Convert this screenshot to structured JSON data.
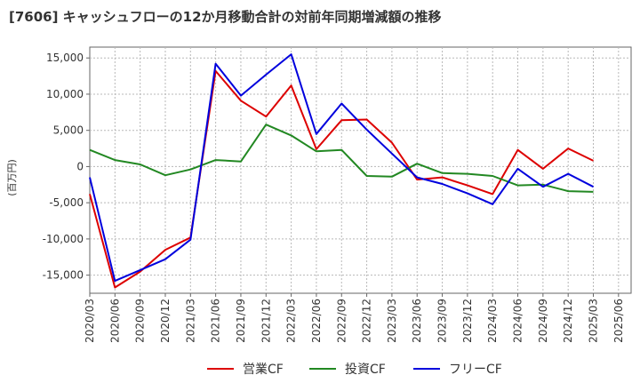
{
  "chart_data": {
    "type": "line",
    "title": "[7606]  キャッシュフローの12か月移動合計の対前年同期増減額の推移",
    "ylabel": "(百万円)",
    "xlabel": "",
    "ylim": [
      -17500,
      16500
    ],
    "yticks": [
      15000,
      10000,
      5000,
      0,
      -5000,
      -10000,
      -15000
    ],
    "ytick_labels": [
      "15,000",
      "10,000",
      "5,000",
      "0",
      "-5,000",
      "-10,000",
      "-15,000"
    ],
    "grid": true,
    "legend_position": "bottom",
    "categories": [
      "2020/03",
      "2020/06",
      "2020/09",
      "2020/12",
      "2021/03",
      "2021/06",
      "2021/09",
      "2021/12",
      "2022/03",
      "2022/06",
      "2022/09",
      "2022/12",
      "2023/03",
      "2023/06",
      "2023/09",
      "2023/12",
      "2024/03",
      "2024/06",
      "2024/09",
      "2024/12",
      "2025/03",
      "2025/06"
    ],
    "series": [
      {
        "name": "営業CF",
        "color": "#dd0000",
        "values": [
          -3800,
          -16700,
          -14500,
          -11500,
          -9800,
          13200,
          9100,
          6900,
          11200,
          2400,
          6400,
          6500,
          3300,
          -1800,
          -1500,
          -2600,
          -3800,
          2300,
          -300,
          2500,
          800,
          null
        ]
      },
      {
        "name": "投資CF",
        "color": "#228822",
        "values": [
          2300,
          900,
          300,
          -1200,
          -400,
          900,
          700,
          5800,
          4300,
          2100,
          2300,
          -1300,
          -1400,
          400,
          -900,
          -1000,
          -1300,
          -2600,
          -2500,
          -3400,
          -3500,
          null
        ]
      },
      {
        "name": "フリーCF",
        "color": "#0000dd",
        "values": [
          -1500,
          -15800,
          -14300,
          -12800,
          -10100,
          14200,
          9800,
          12700,
          15500,
          4500,
          8700,
          5100,
          1800,
          -1500,
          -2400,
          -3700,
          -5200,
          -300,
          -2800,
          -1000,
          -2800,
          null
        ]
      }
    ]
  }
}
